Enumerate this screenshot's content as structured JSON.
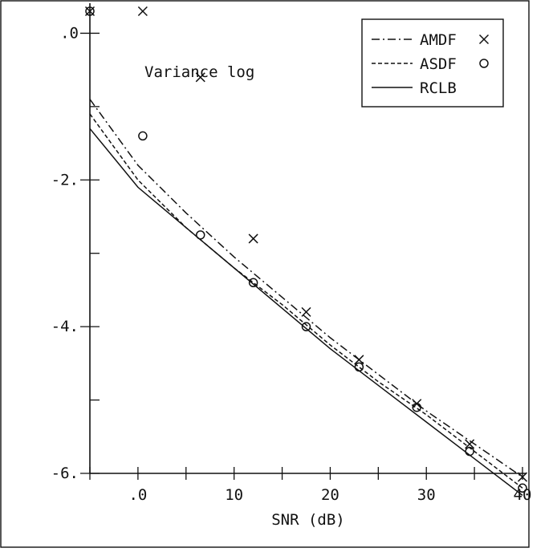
{
  "chart_data": {
    "type": "line",
    "title": "",
    "annotation": "Variance log",
    "xlabel": "SNR (dB)",
    "ylabel": "",
    "xlim": [
      -5,
      40
    ],
    "ylim": [
      -6,
      0.3
    ],
    "x_ticks": [
      {
        "value": 0,
        "label": ".0"
      },
      {
        "value": 10,
        "label": "10"
      },
      {
        "value": 20,
        "label": "20"
      },
      {
        "value": 30,
        "label": "30"
      },
      {
        "value": 40,
        "label": "40"
      }
    ],
    "x_minor_ticks": [
      -5,
      5,
      15,
      25,
      35
    ],
    "y_ticks": [
      {
        "value": 0,
        "label": ".0"
      },
      {
        "value": -2,
        "label": "-2."
      },
      {
        "value": -4,
        "label": "-4."
      },
      {
        "value": -6,
        "label": "-6."
      }
    ],
    "y_minor_ticks": [
      -1,
      -3,
      -5
    ],
    "grid": false,
    "legend_position": "top-right",
    "series": [
      {
        "name": "AMDF",
        "marker": "×",
        "line_style": "dashdot",
        "line_x": [
          -5,
          0,
          5,
          10,
          15,
          20,
          25,
          30,
          35,
          40
        ],
        "line_y": [
          -0.9,
          -1.8,
          -2.45,
          -3.05,
          -3.6,
          -4.15,
          -4.65,
          -5.15,
          -5.6,
          -6.05
        ],
        "points_x": [
          -5,
          0.5,
          6.5,
          12,
          17.5,
          23,
          29,
          34.5,
          40
        ],
        "points_y": [
          0.3,
          0.3,
          -0.6,
          -2.8,
          -3.8,
          -4.45,
          -5.05,
          -5.6,
          -6.05
        ]
      },
      {
        "name": "ASDF",
        "marker": "o",
        "line_style": "dashed",
        "line_x": [
          -5,
          0,
          5,
          10,
          15,
          20,
          25,
          30,
          35,
          40
        ],
        "line_y": [
          -1.1,
          -2.0,
          -2.65,
          -3.2,
          -3.7,
          -4.25,
          -4.75,
          -5.2,
          -5.7,
          -6.2
        ],
        "points_x": [
          -5,
          0.5,
          6.5,
          12,
          17.5,
          23,
          29,
          34.5,
          40
        ],
        "points_y": [
          0.3,
          -1.4,
          -2.75,
          -3.4,
          -4.0,
          -4.55,
          -5.1,
          -5.7,
          -6.2
        ]
      },
      {
        "name": "RCLB",
        "marker": "",
        "line_style": "solid",
        "line_x": [
          -5,
          0,
          5,
          10,
          15,
          20,
          25,
          30,
          35,
          40
        ],
        "line_y": [
          -1.3,
          -2.1,
          -2.65,
          -3.2,
          -3.75,
          -4.3,
          -4.8,
          -5.3,
          -5.8,
          -6.3
        ],
        "points_x": [],
        "points_y": []
      }
    ]
  }
}
